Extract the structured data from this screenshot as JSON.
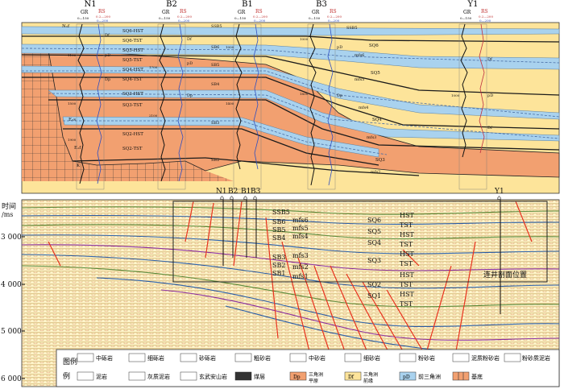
{
  "section": {
    "wells": [
      {
        "id": "N1",
        "gr_name": "GR",
        "gr_range": "0—150",
        "rs_name": "RS",
        "rs_range": "0.2—200",
        "rs2": "R1",
        "rs2_range": "0—200"
      },
      {
        "id": "B2",
        "gr_name": "GR",
        "gr_range": "0—150",
        "rs_name": "RS",
        "rs_range": "0.2—200",
        "rs2": "R1",
        "rs2_range": "0—200"
      },
      {
        "id": "B1",
        "gr_name": "GR",
        "gr_range": "0—150",
        "rs_name": "RS",
        "rs_range": "0.2—200",
        "rs2": "R1",
        "rs2_range": "0—200"
      },
      {
        "id": "B3",
        "gr_name": "GR",
        "gr_range": "0—150",
        "rs_name": "RS",
        "rs_range": "0.2—200",
        "rs2": "R1",
        "rs2_range": "0—200"
      },
      {
        "id": "Y1",
        "gr_name": "GR",
        "gr_range": "0—150",
        "rs_name": "RS",
        "rs_range": "0.2—200",
        "rs2": "R1",
        "rs2_range": "0—200"
      }
    ],
    "systems_tracts": [
      "SQ6-HST",
      "SQ6-TST",
      "SQ5-HST",
      "SQ5-TST",
      "SQ4-HST",
      "SQ4-TST",
      "SQ3-HST",
      "SQ3-TST",
      "SQ2-HST",
      "SQ2-TST"
    ],
    "surfaces_left": [
      "SSB5",
      "SB6",
      "SB5",
      "SB4",
      "SB3",
      "SB2"
    ],
    "surfaces_right": [
      "mfs6",
      "mfs5",
      "mfs4",
      "mfs3",
      "mfs2"
    ],
    "sq_right": [
      "SQ6",
      "SQ5",
      "SQ4",
      "SQ3"
    ],
    "strat": [
      "N₁f",
      "E₂s",
      "E₁f",
      "K"
    ],
    "facies_codes": [
      "Df",
      "pD",
      "Dp"
    ],
    "depths": [
      "1100",
      "1500",
      "1900",
      "2300",
      "1700",
      "2100",
      "2500",
      "1000",
      "1400",
      "1800",
      "1200",
      "1600",
      "2000"
    ]
  },
  "seismic": {
    "axis_title": "时间",
    "axis_unit": "/ms",
    "ticks": [
      "3 000",
      "4 000",
      "5 000",
      "6 000"
    ],
    "well_tops": [
      "N1",
      "B2",
      "B1",
      "B3",
      "Y1"
    ],
    "sb_labels": [
      "SSB5",
      "SB6",
      "SB5",
      "SB4",
      "SB3",
      "SB2",
      "SB1"
    ],
    "mfs_labels": [
      "mfs6",
      "mfs5",
      "mfs4",
      "mfs3",
      "mfs2",
      "mfs1"
    ],
    "sq_labels": [
      "SQ6",
      "SQ5",
      "SQ4",
      "SQ3",
      "SQ2",
      "SQ1"
    ],
    "tract_labels": [
      "HST",
      "TST",
      "HST",
      "TST",
      "HST",
      "TST",
      "HST",
      "TST",
      "HST",
      "TST"
    ],
    "box_label": "连井剖面位置"
  },
  "legend": {
    "title": "图例",
    "row1": [
      "中砾岩",
      "细砾岩",
      "砂砾岩",
      "粗砂岩",
      "中砂岩",
      "细砂岩",
      "粉砂岩",
      "泥质粉砂岩",
      "粉砂质泥岩"
    ],
    "row2": [
      "泥岩",
      "灰质泥岩",
      "玄武安山岩",
      "煤层",
      "三角洲平原",
      "三角洲前缘",
      "前三角洲",
      "基底"
    ],
    "facies": [
      {
        "code": "Dp",
        "name_l1": "三角洲",
        "name_l2": "平原",
        "color": "#f2a070"
      },
      {
        "code": "Df",
        "name_l1": "三角洲",
        "name_l2": "前缘",
        "color": "#fde49a"
      },
      {
        "code": "pD",
        "name": "前三角洲",
        "color": "#a9d2ee"
      }
    ]
  },
  "colors": {
    "delta_plain": "#f2a070",
    "delta_front": "#fde49a",
    "prodelta": "#a9d2ee",
    "fault": "#e8321e",
    "basement": "#f2a070"
  }
}
